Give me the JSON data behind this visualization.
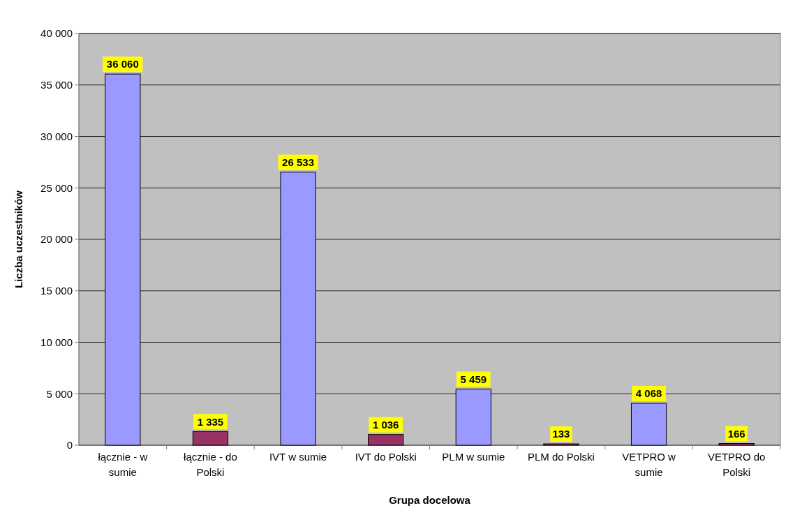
{
  "chart_data": {
    "type": "bar",
    "xlabel": "Grupa docelowa",
    "ylabel": "Liczba uczestników",
    "categories": [
      "łącznie - w sumie",
      "łącznie - do Polski",
      "IVT w sumie",
      "IVT do Polski",
      "PLM w sumie",
      "PLM do Polski",
      "VETPRO w sumie",
      "VETPRO do Polski"
    ],
    "values": [
      36060,
      1335,
      26533,
      1036,
      5459,
      133,
      4068,
      166
    ],
    "value_labels": [
      "36 060",
      "1 335",
      "26 533",
      "1 036",
      "5 459",
      "133",
      "4 068",
      "166"
    ],
    "colors": [
      "#9999ff",
      "#993366",
      "#9999ff",
      "#993366",
      "#9999ff",
      "#993366",
      "#9999ff",
      "#993366"
    ],
    "ylim": [
      0,
      40000
    ],
    "yticks": [
      {
        "value": 0,
        "label": "0"
      },
      {
        "value": 5000,
        "label": "5 000"
      },
      {
        "value": 10000,
        "label": "10 000"
      },
      {
        "value": 15000,
        "label": "15 000"
      },
      {
        "value": 20000,
        "label": "20 000"
      },
      {
        "value": 25000,
        "label": "25 000"
      },
      {
        "value": 30000,
        "label": "30 000"
      },
      {
        "value": 35000,
        "label": "35 000"
      },
      {
        "value": 40000,
        "label": "40 000"
      }
    ],
    "grid": "y"
  }
}
